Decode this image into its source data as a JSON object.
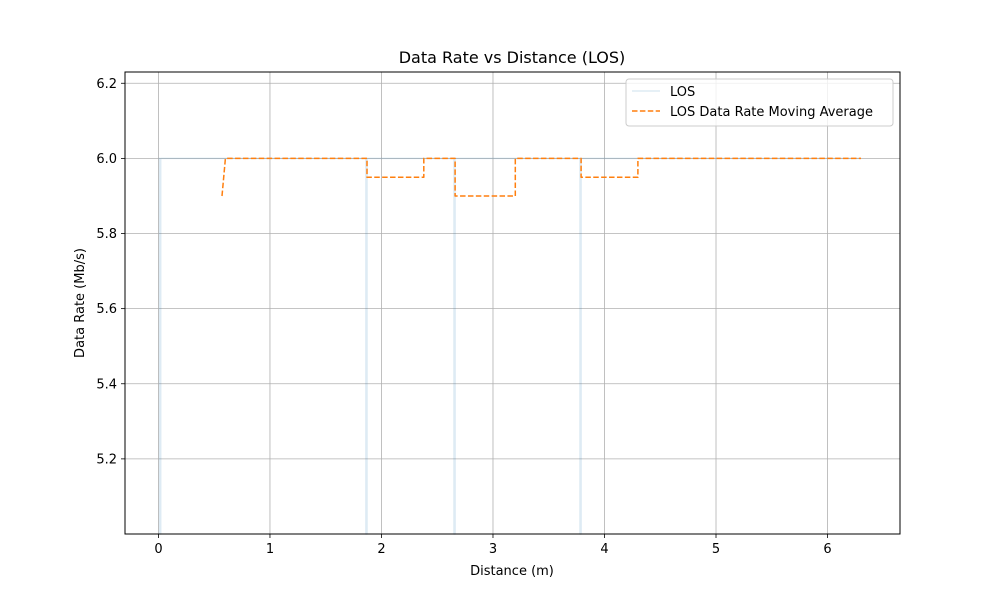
{
  "chart_data": {
    "type": "line",
    "title": "Data Rate vs Distance (LOS)",
    "xlabel": "Distance (m)",
    "ylabel": "Data Rate (Mb/s)",
    "xlim": [
      -0.3,
      6.65
    ],
    "ylim": [
      5.0,
      6.23
    ],
    "xticks": [
      0,
      1,
      2,
      3,
      4,
      5,
      6
    ],
    "yticks": [
      5.2,
      5.4,
      5.6,
      5.8,
      6.0,
      6.2
    ],
    "xtick_labels": [
      "0",
      "1",
      "2",
      "3",
      "4",
      "5",
      "6"
    ],
    "ytick_labels": [
      "5.2",
      "5.4",
      "5.6",
      "5.8",
      "6.0",
      "6.2"
    ],
    "grid": true,
    "legend_position": "top-right",
    "series": [
      {
        "name": "LOS",
        "style": "solid",
        "color": "#1f77b4",
        "opacity": 0.15,
        "x": [
          0.0,
          0.01,
          0.01,
          0.02,
          0.02,
          1.86,
          1.86,
          1.87,
          1.87,
          2.65,
          2.65,
          2.66,
          2.66,
          3.78,
          3.78,
          3.79,
          3.79,
          6.3
        ],
        "y": [
          6.0,
          6.0,
          5.0,
          5.0,
          6.0,
          6.0,
          5.0,
          5.0,
          6.0,
          6.0,
          5.0,
          5.0,
          6.0,
          6.0,
          5.0,
          5.0,
          6.0,
          6.0
        ]
      },
      {
        "name": "LOS Data Rate Moving Average",
        "style": "dashed",
        "color": "#ff7f0e",
        "x": [
          0.57,
          0.6,
          1.87,
          1.87,
          2.38,
          2.38,
          2.66,
          2.66,
          3.2,
          3.2,
          3.79,
          3.79,
          4.3,
          4.3,
          6.3
        ],
        "y": [
          5.9,
          6.0,
          6.0,
          5.95,
          5.95,
          6.0,
          6.0,
          5.9,
          5.9,
          6.0,
          6.0,
          5.95,
          5.95,
          6.0,
          6.0
        ]
      }
    ]
  }
}
